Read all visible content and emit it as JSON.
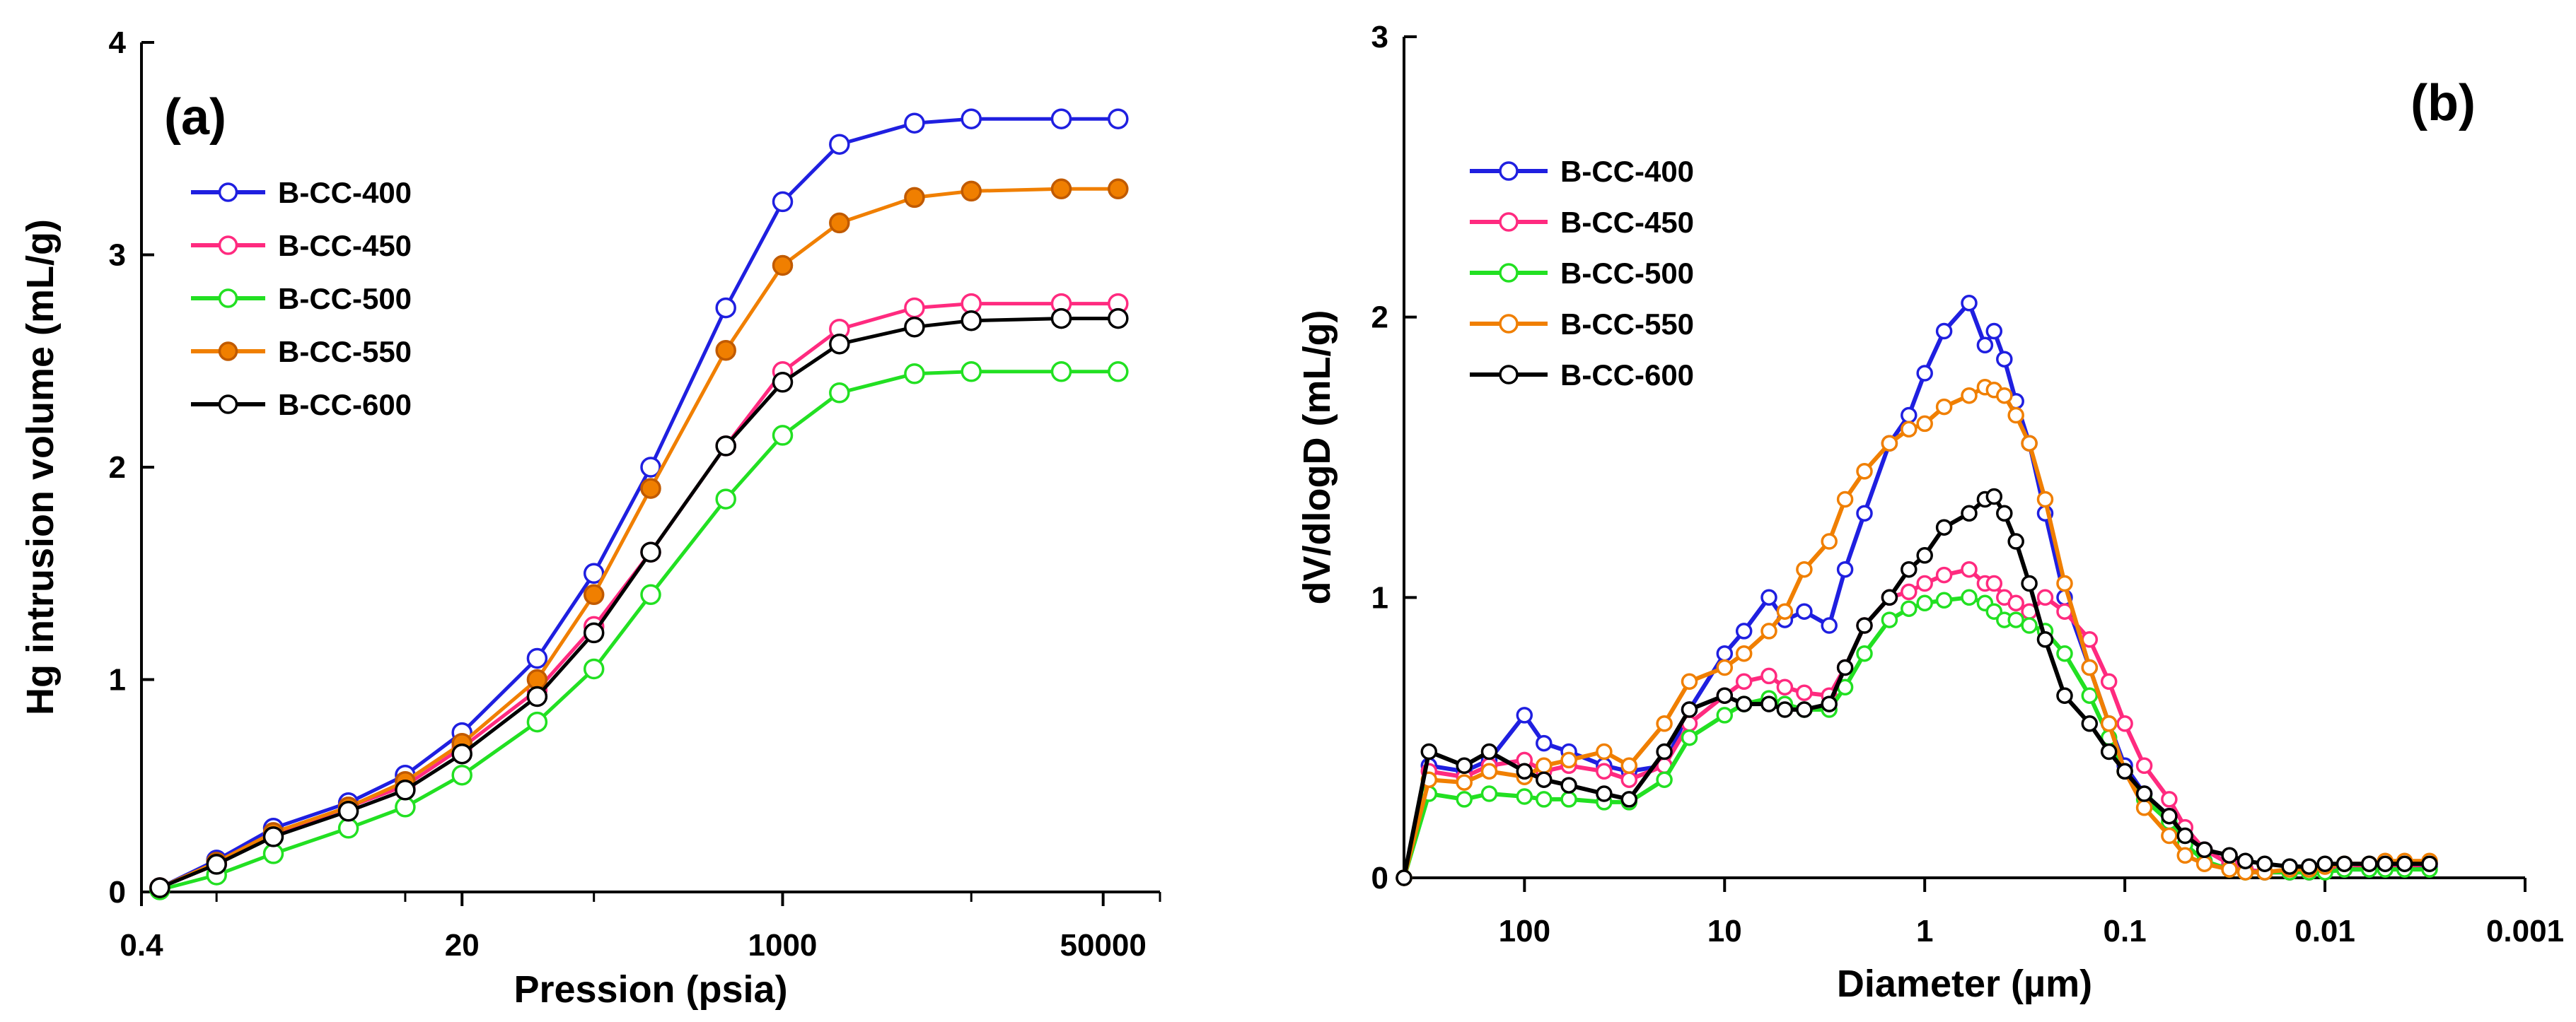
{
  "chart_data": [
    {
      "type": "scatter",
      "panel_label": "(a)",
      "xlabel": "Pression (psia)",
      "ylabel": "Hg intrusion volume (mL/g)",
      "xscale": "log",
      "xlim": [
        0.4,
        100000
      ],
      "ylim": [
        0,
        4
      ],
      "xticks": [
        {
          "value": 0.4,
          "label": "0.4"
        },
        {
          "value": 20,
          "label": "20"
        },
        {
          "value": 1000,
          "label": "1000"
        },
        {
          "value": 50000,
          "label": "50000"
        }
      ],
      "yticks": [
        {
          "value": 0,
          "label": "0"
        },
        {
          "value": 1,
          "label": "1"
        },
        {
          "value": 2,
          "label": "2"
        },
        {
          "value": 3,
          "label": "3"
        },
        {
          "value": 4,
          "label": "4"
        }
      ],
      "legend_position": "top-left",
      "series": [
        {
          "name": "B-CC-400",
          "color": "#1f1fe0",
          "marker": "open-circle",
          "x": [
            0.5,
            1,
            2,
            5,
            10,
            20,
            50,
            100,
            200,
            500,
            1000,
            2000,
            5000,
            10000,
            30000,
            60000
          ],
          "y": [
            0.02,
            0.15,
            0.3,
            0.42,
            0.55,
            0.75,
            1.1,
            1.5,
            2.0,
            2.75,
            3.25,
            3.52,
            3.62,
            3.64,
            3.64,
            3.64
          ]
        },
        {
          "name": "B-CC-450",
          "color": "#ff2a7f",
          "marker": "open-circle",
          "x": [
            0.5,
            1,
            2,
            5,
            10,
            20,
            50,
            100,
            200,
            500,
            1000,
            2000,
            5000,
            10000,
            30000,
            60000
          ],
          "y": [
            0.02,
            0.13,
            0.27,
            0.4,
            0.5,
            0.68,
            0.95,
            1.25,
            1.6,
            2.1,
            2.45,
            2.65,
            2.75,
            2.77,
            2.77,
            2.77
          ]
        },
        {
          "name": "B-CC-500",
          "color": "#22e022",
          "marker": "open-circle",
          "x": [
            0.5,
            1,
            2,
            5,
            10,
            20,
            50,
            100,
            200,
            500,
            1000,
            2000,
            5000,
            10000,
            30000,
            60000
          ],
          "y": [
            0.01,
            0.08,
            0.18,
            0.3,
            0.4,
            0.55,
            0.8,
            1.05,
            1.4,
            1.85,
            2.15,
            2.35,
            2.44,
            2.45,
            2.45,
            2.45
          ]
        },
        {
          "name": "B-CC-550",
          "color": "#f07f00",
          "marker": "filled-circle",
          "x": [
            0.5,
            1,
            2,
            5,
            10,
            20,
            50,
            100,
            200,
            500,
            1000,
            2000,
            5000,
            10000,
            30000,
            60000
          ],
          "y": [
            0.02,
            0.14,
            0.28,
            0.4,
            0.52,
            0.7,
            1.0,
            1.4,
            1.9,
            2.55,
            2.95,
            3.15,
            3.27,
            3.3,
            3.31,
            3.31
          ]
        },
        {
          "name": "B-CC-600",
          "color": "#000000",
          "marker": "open-circle",
          "x": [
            0.5,
            1,
            2,
            5,
            10,
            20,
            50,
            100,
            200,
            500,
            1000,
            2000,
            5000,
            10000,
            30000,
            60000
          ],
          "y": [
            0.02,
            0.13,
            0.26,
            0.38,
            0.48,
            0.65,
            0.92,
            1.22,
            1.6,
            2.1,
            2.4,
            2.58,
            2.66,
            2.69,
            2.7,
            2.7
          ]
        }
      ]
    },
    {
      "type": "line",
      "panel_label": "(b)",
      "xlabel": "Diameter (µm)",
      "ylabel": "dV/dlogD (mL/g)",
      "xscale": "log",
      "x_reversed": true,
      "xlim": [
        400,
        0.001
      ],
      "ylim": [
        0,
        3
      ],
      "xticks": [
        {
          "value": 100,
          "label": "100"
        },
        {
          "value": 10,
          "label": "10"
        },
        {
          "value": 1,
          "label": "1"
        },
        {
          "value": 0.1,
          "label": "0.1"
        },
        {
          "value": 0.01,
          "label": "0.01"
        },
        {
          "value": 0.001,
          "label": "0.001"
        }
      ],
      "yticks": [
        {
          "value": 0,
          "label": "0"
        },
        {
          "value": 1,
          "label": "1"
        },
        {
          "value": 2,
          "label": "2"
        },
        {
          "value": 3,
          "label": "3"
        }
      ],
      "legend_position": "top-left",
      "series": [
        {
          "name": "B-CC-400",
          "color": "#1f1fe0",
          "marker": "open-circle",
          "x": [
            400,
            300,
            200,
            150,
            100,
            80,
            60,
            40,
            30,
            20,
            15,
            10,
            8,
            6,
            5,
            4,
            3,
            2.5,
            2,
            1.5,
            1.2,
            1,
            0.8,
            0.6,
            0.5,
            0.45,
            0.4,
            0.35,
            0.3,
            0.25,
            0.2,
            0.15,
            0.12,
            0.1,
            0.08,
            0.06,
            0.05,
            0.04,
            0.03,
            0.025,
            0.02,
            0.015,
            0.012,
            0.01,
            0.008,
            0.006,
            0.005,
            0.004,
            0.003
          ],
          "y": [
            0.0,
            0.4,
            0.38,
            0.42,
            0.58,
            0.48,
            0.45,
            0.4,
            0.38,
            0.4,
            0.6,
            0.8,
            0.88,
            1.0,
            0.92,
            0.95,
            0.9,
            1.1,
            1.3,
            1.55,
            1.65,
            1.8,
            1.95,
            2.05,
            1.9,
            1.95,
            1.85,
            1.7,
            1.55,
            1.3,
            1.0,
            0.75,
            0.55,
            0.4,
            0.3,
            0.22,
            0.15,
            0.1,
            0.05,
            0.03,
            0.02,
            0.02,
            0.02,
            0.03,
            0.03,
            0.03,
            0.04,
            0.04,
            0.04
          ]
        },
        {
          "name": "B-CC-450",
          "color": "#ff2a7f",
          "marker": "open-circle",
          "x": [
            400,
            300,
            200,
            150,
            100,
            80,
            60,
            40,
            30,
            20,
            15,
            10,
            8,
            6,
            5,
            4,
            3,
            2.5,
            2,
            1.5,
            1.2,
            1,
            0.8,
            0.6,
            0.5,
            0.45,
            0.4,
            0.35,
            0.3,
            0.25,
            0.2,
            0.15,
            0.12,
            0.1,
            0.08,
            0.06,
            0.05,
            0.04,
            0.03,
            0.025,
            0.02,
            0.015,
            0.012,
            0.01,
            0.008,
            0.006,
            0.005,
            0.004,
            0.003
          ],
          "y": [
            0.0,
            0.38,
            0.36,
            0.4,
            0.42,
            0.38,
            0.4,
            0.38,
            0.35,
            0.4,
            0.55,
            0.65,
            0.7,
            0.72,
            0.68,
            0.66,
            0.65,
            0.75,
            0.9,
            1.0,
            1.02,
            1.05,
            1.08,
            1.1,
            1.05,
            1.05,
            1.0,
            0.98,
            0.95,
            1.0,
            0.95,
            0.85,
            0.7,
            0.55,
            0.4,
            0.28,
            0.18,
            0.1,
            0.05,
            0.03,
            0.02,
            0.02,
            0.02,
            0.03,
            0.03,
            0.04,
            0.04,
            0.04,
            0.05
          ]
        },
        {
          "name": "B-CC-500",
          "color": "#22e022",
          "marker": "open-circle",
          "x": [
            400,
            300,
            200,
            150,
            100,
            80,
            60,
            40,
            30,
            20,
            15,
            10,
            8,
            6,
            5,
            4,
            3,
            2.5,
            2,
            1.5,
            1.2,
            1,
            0.8,
            0.6,
            0.5,
            0.45,
            0.4,
            0.35,
            0.3,
            0.25,
            0.2,
            0.15,
            0.12,
            0.1,
            0.08,
            0.06,
            0.05,
            0.04,
            0.03,
            0.025,
            0.02,
            0.015,
            0.012,
            0.01,
            0.008,
            0.006,
            0.005,
            0.004,
            0.003
          ],
          "y": [
            0.0,
            0.3,
            0.28,
            0.3,
            0.29,
            0.28,
            0.28,
            0.27,
            0.27,
            0.35,
            0.5,
            0.58,
            0.62,
            0.64,
            0.62,
            0.6,
            0.6,
            0.68,
            0.8,
            0.92,
            0.96,
            0.98,
            0.99,
            1.0,
            0.98,
            0.95,
            0.92,
            0.92,
            0.9,
            0.88,
            0.8,
            0.65,
            0.5,
            0.38,
            0.28,
            0.2,
            0.12,
            0.06,
            0.03,
            0.02,
            0.02,
            0.02,
            0.02,
            0.02,
            0.03,
            0.03,
            0.03,
            0.03,
            0.03
          ]
        },
        {
          "name": "B-CC-550",
          "color": "#f07f00",
          "marker": "open-circle",
          "x": [
            400,
            300,
            200,
            150,
            100,
            80,
            60,
            40,
            30,
            20,
            15,
            10,
            8,
            6,
            5,
            4,
            3,
            2.5,
            2,
            1.5,
            1.2,
            1,
            0.8,
            0.6,
            0.5,
            0.45,
            0.4,
            0.35,
            0.3,
            0.25,
            0.2,
            0.15,
            0.12,
            0.1,
            0.08,
            0.06,
            0.05,
            0.04,
            0.03,
            0.025,
            0.02,
            0.015,
            0.012,
            0.01,
            0.008,
            0.006,
            0.005,
            0.004,
            0.003
          ],
          "y": [
            0.0,
            0.35,
            0.34,
            0.38,
            0.36,
            0.4,
            0.42,
            0.45,
            0.4,
            0.55,
            0.7,
            0.75,
            0.8,
            0.88,
            0.95,
            1.1,
            1.2,
            1.35,
            1.45,
            1.55,
            1.6,
            1.62,
            1.68,
            1.72,
            1.75,
            1.74,
            1.72,
            1.65,
            1.55,
            1.35,
            1.05,
            0.75,
            0.55,
            0.38,
            0.25,
            0.15,
            0.08,
            0.05,
            0.03,
            0.02,
            0.02,
            0.03,
            0.03,
            0.04,
            0.05,
            0.05,
            0.06,
            0.06,
            0.06
          ]
        },
        {
          "name": "B-CC-600",
          "color": "#000000",
          "marker": "open-circle",
          "x": [
            400,
            300,
            200,
            150,
            100,
            80,
            60,
            40,
            30,
            20,
            15,
            10,
            8,
            6,
            5,
            4,
            3,
            2.5,
            2,
            1.5,
            1.2,
            1,
            0.8,
            0.6,
            0.5,
            0.45,
            0.4,
            0.35,
            0.3,
            0.25,
            0.2,
            0.15,
            0.12,
            0.1,
            0.08,
            0.06,
            0.05,
            0.04,
            0.03,
            0.025,
            0.02,
            0.015,
            0.012,
            0.01,
            0.008,
            0.006,
            0.005,
            0.004,
            0.003
          ],
          "y": [
            0.0,
            0.45,
            0.4,
            0.45,
            0.38,
            0.35,
            0.33,
            0.3,
            0.28,
            0.45,
            0.6,
            0.65,
            0.62,
            0.62,
            0.6,
            0.6,
            0.62,
            0.75,
            0.9,
            1.0,
            1.1,
            1.15,
            1.25,
            1.3,
            1.35,
            1.36,
            1.3,
            1.2,
            1.05,
            0.85,
            0.65,
            0.55,
            0.45,
            0.38,
            0.3,
            0.22,
            0.15,
            0.1,
            0.08,
            0.06,
            0.05,
            0.04,
            0.04,
            0.05,
            0.05,
            0.05,
            0.05,
            0.05,
            0.05
          ]
        }
      ]
    }
  ]
}
